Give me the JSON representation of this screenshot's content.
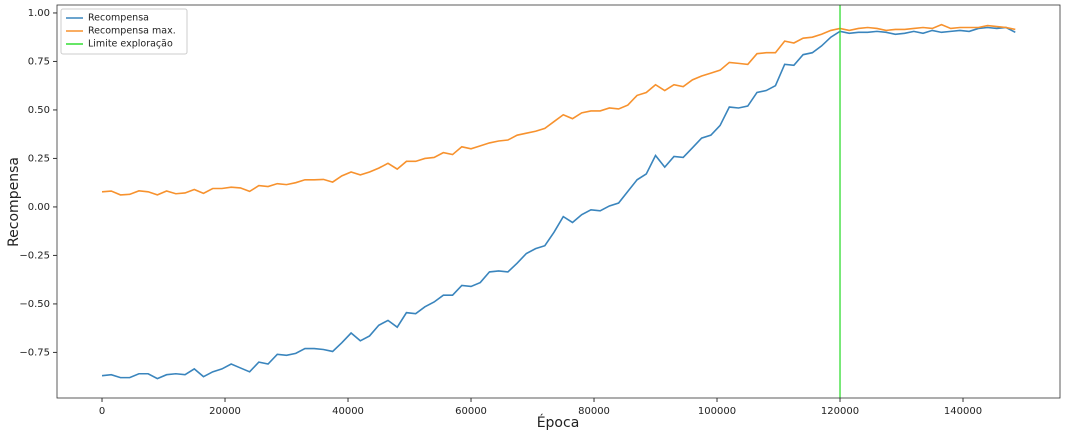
{
  "chart_data": {
    "type": "line",
    "xlabel": "Época",
    "ylabel": "Recompensa",
    "x": [
      0,
      1500,
      3000,
      4500,
      6000,
      7500,
      9000,
      10500,
      12000,
      13500,
      15000,
      16500,
      18000,
      19500,
      21000,
      22500,
      24000,
      25500,
      27000,
      28500,
      30000,
      31500,
      33000,
      34500,
      36000,
      37500,
      39000,
      40500,
      42000,
      43500,
      45000,
      46500,
      48000,
      49500,
      51000,
      52500,
      54000,
      55500,
      57000,
      58500,
      60000,
      61500,
      63000,
      64500,
      66000,
      67500,
      69000,
      70500,
      72000,
      73500,
      75000,
      76500,
      78000,
      79500,
      81000,
      82500,
      84000,
      85500,
      87000,
      88500,
      90000,
      91500,
      93000,
      94500,
      96000,
      97500,
      99000,
      100500,
      102000,
      103500,
      105000,
      106500,
      108000,
      109500,
      111000,
      112500,
      114000,
      115500,
      117000,
      118500,
      120000,
      121500,
      123000,
      124500,
      126000,
      127500,
      129000,
      130500,
      132000,
      133500,
      135000,
      136500,
      138000,
      139500,
      141000,
      142500,
      144000,
      145500,
      147000,
      148500
    ],
    "series": [
      {
        "name": "Recompensa",
        "color": "#3a85bd",
        "values": [
          -0.87,
          -0.865,
          -0.88,
          -0.88,
          -0.86,
          -0.86,
          -0.885,
          -0.865,
          -0.86,
          -0.865,
          -0.835,
          -0.875,
          -0.85,
          -0.835,
          -0.81,
          -0.83,
          -0.85,
          -0.8,
          -0.81,
          -0.76,
          -0.765,
          -0.755,
          -0.73,
          -0.73,
          -0.735,
          -0.745,
          -0.7,
          -0.65,
          -0.69,
          -0.665,
          -0.61,
          -0.585,
          -0.62,
          -0.545,
          -0.55,
          -0.515,
          -0.49,
          -0.455,
          -0.455,
          -0.405,
          -0.41,
          -0.39,
          -0.335,
          -0.33,
          -0.335,
          -0.29,
          -0.24,
          -0.215,
          -0.2,
          -0.13,
          -0.05,
          -0.08,
          -0.04,
          -0.015,
          -0.02,
          0.005,
          0.02,
          0.08,
          0.14,
          0.17,
          0.265,
          0.205,
          0.26,
          0.255,
          0.305,
          0.355,
          0.37,
          0.42,
          0.515,
          0.51,
          0.52,
          0.59,
          0.6,
          0.625,
          0.735,
          0.73,
          0.785,
          0.795,
          0.83,
          0.875,
          0.905,
          0.895,
          0.9,
          0.9,
          0.905,
          0.9,
          0.89,
          0.895,
          0.905,
          0.895,
          0.91,
          0.9,
          0.905,
          0.91,
          0.905,
          0.92,
          0.925,
          0.92,
          0.925,
          0.9
        ]
      },
      {
        "name": "Recompensa max.",
        "color": "#f7922e",
        "values": [
          0.078,
          0.082,
          0.062,
          0.065,
          0.083,
          0.078,
          0.062,
          0.082,
          0.068,
          0.072,
          0.09,
          0.07,
          0.095,
          0.095,
          0.102,
          0.098,
          0.08,
          0.11,
          0.105,
          0.12,
          0.115,
          0.125,
          0.14,
          0.14,
          0.142,
          0.128,
          0.16,
          0.18,
          0.165,
          0.18,
          0.2,
          0.225,
          0.195,
          0.235,
          0.235,
          0.25,
          0.255,
          0.28,
          0.27,
          0.31,
          0.3,
          0.315,
          0.33,
          0.34,
          0.345,
          0.37,
          0.38,
          0.39,
          0.405,
          0.44,
          0.475,
          0.455,
          0.485,
          0.495,
          0.495,
          0.51,
          0.505,
          0.525,
          0.575,
          0.59,
          0.63,
          0.6,
          0.63,
          0.62,
          0.655,
          0.675,
          0.69,
          0.705,
          0.745,
          0.74,
          0.735,
          0.79,
          0.795,
          0.795,
          0.855,
          0.845,
          0.87,
          0.875,
          0.89,
          0.91,
          0.92,
          0.91,
          0.92,
          0.925,
          0.92,
          0.91,
          0.915,
          0.915,
          0.92,
          0.925,
          0.92,
          0.94,
          0.92,
          0.925,
          0.925,
          0.925,
          0.935,
          0.93,
          0.925,
          0.915
        ]
      }
    ],
    "vlines": [
      {
        "name": "Limite exploração",
        "color": "#33dd33",
        "x": 120000
      }
    ],
    "xlim": [
      -7320,
      155770
    ],
    "ylim": [
      -0.985,
      1.041
    ],
    "xticks": [
      0,
      20000,
      40000,
      60000,
      80000,
      100000,
      120000,
      140000
    ],
    "yticks": [
      {
        "value": -0.75,
        "label": "−0.75"
      },
      {
        "value": -0.5,
        "label": "−0.50"
      },
      {
        "value": -0.25,
        "label": "−0.25"
      },
      {
        "value": 0,
        "label": "0.00"
      },
      {
        "value": 0.25,
        "label": "0.25"
      },
      {
        "value": 0.5,
        "label": "0.50"
      },
      {
        "value": 0.75,
        "label": "0.75"
      },
      {
        "value": 1,
        "label": "1.00"
      }
    ],
    "legend": "upper left"
  }
}
